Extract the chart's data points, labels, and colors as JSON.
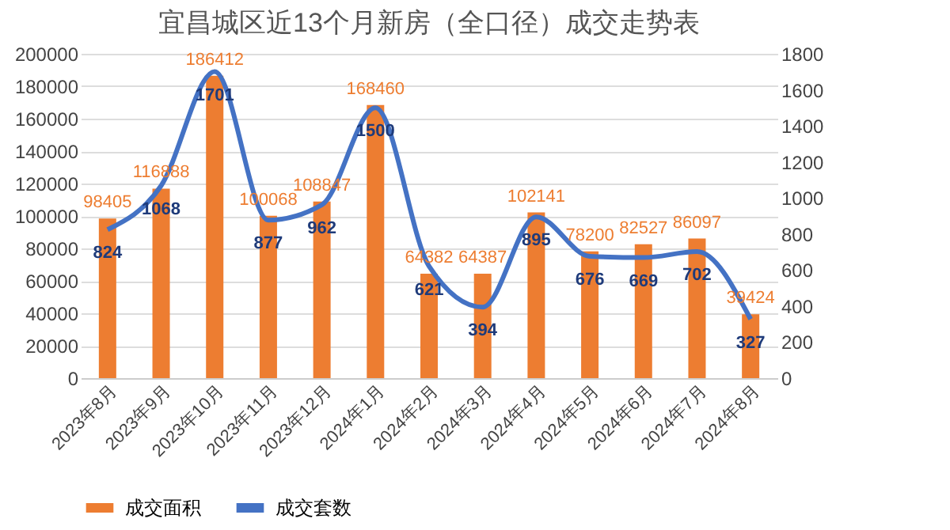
{
  "chart_data": {
    "type": "bar",
    "title": "宜昌城区近13个月新房（全口径）成交走势表",
    "categories": [
      "2023年8月",
      "2023年9月",
      "2023年10月",
      "2023年11月",
      "2023年12月",
      "2024年1月",
      "2024年2月",
      "2024年3月",
      "2024年4月",
      "2024年5月",
      "2024年6月",
      "2024年7月",
      "2024年8月"
    ],
    "series": [
      {
        "name": "成交面积",
        "type": "bar",
        "color": "#ed7d31",
        "values": [
          98405,
          116888,
          186412,
          100068,
          108847,
          168460,
          64382,
          64387,
          102141,
          78200,
          82527,
          86097,
          39424
        ]
      },
      {
        "name": "成交套数",
        "type": "line",
        "axis": "y2",
        "color": "#4472c4",
        "values": [
          824,
          1068,
          1701,
          877,
          962,
          1500,
          621,
          394,
          895,
          676,
          669,
          702,
          327
        ]
      }
    ],
    "ylim": [
      0,
      200000
    ],
    "yticks": [
      0,
      20000,
      40000,
      60000,
      80000,
      100000,
      120000,
      140000,
      160000,
      180000,
      200000
    ],
    "y2lim": [
      0,
      1800
    ],
    "y2ticks": [
      0,
      200,
      400,
      600,
      800,
      1000,
      1200,
      1400,
      1600,
      1800
    ],
    "grid": "y",
    "legend": "bottom",
    "data_labels": true
  }
}
